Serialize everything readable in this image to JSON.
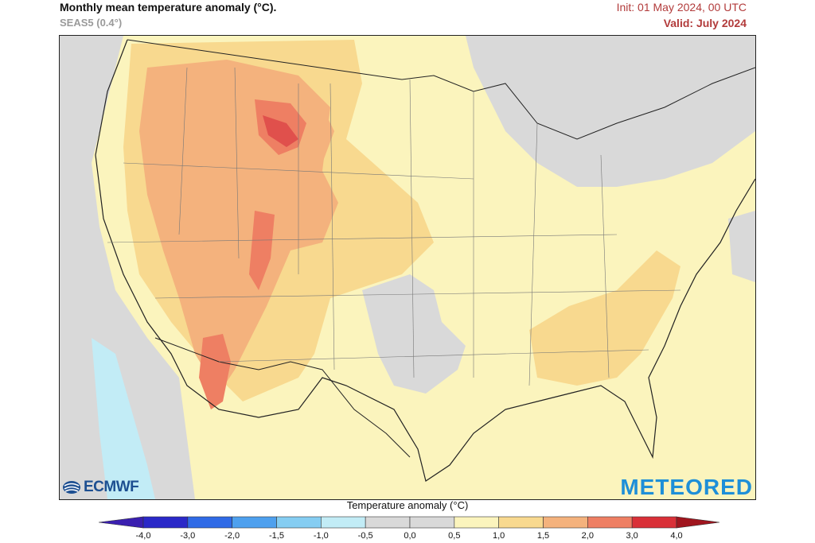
{
  "header": {
    "title": "Monthly mean temperature anomaly (°C).",
    "subtitle": "SEAS5 (0.4°)",
    "init": "Init: 01 May 2024, 00 UTC",
    "valid": "Valid: July 2024"
  },
  "branding": {
    "left_logo": "ECMWF",
    "right_logo": "METEORED"
  },
  "legend": {
    "title": "Temperature anomaly (°C)",
    "ticks": [
      "-4,0",
      "-3,0",
      "-2,0",
      "-1,5",
      "-1,0",
      "-0,5",
      "0,0",
      "0,5",
      "1,0",
      "1,5",
      "2,0",
      "3,0",
      "4,0"
    ],
    "colors": [
      "#2a28c8",
      "#2f6ae6",
      "#4ea0ee",
      "#85cdf2",
      "#c2ecf6",
      "#d9d9d9",
      "#d9d9d9",
      "#fbf4bd",
      "#f8d98f",
      "#f4b27d",
      "#ee7f63",
      "#d93038"
    ],
    "under_color": "#3a1fb0",
    "over_color": "#a0151e"
  },
  "map": {
    "region": "Contiguous United States",
    "colors": {
      "background": "#fbf4bd",
      "warm1": "#f8d98f",
      "warm2": "#f4b27d",
      "warm3": "#ee7f63",
      "warm4": "#e0504c",
      "neutral": "#d9d9d9",
      "cool": "#c2ecf6",
      "border": "#222222"
    }
  }
}
